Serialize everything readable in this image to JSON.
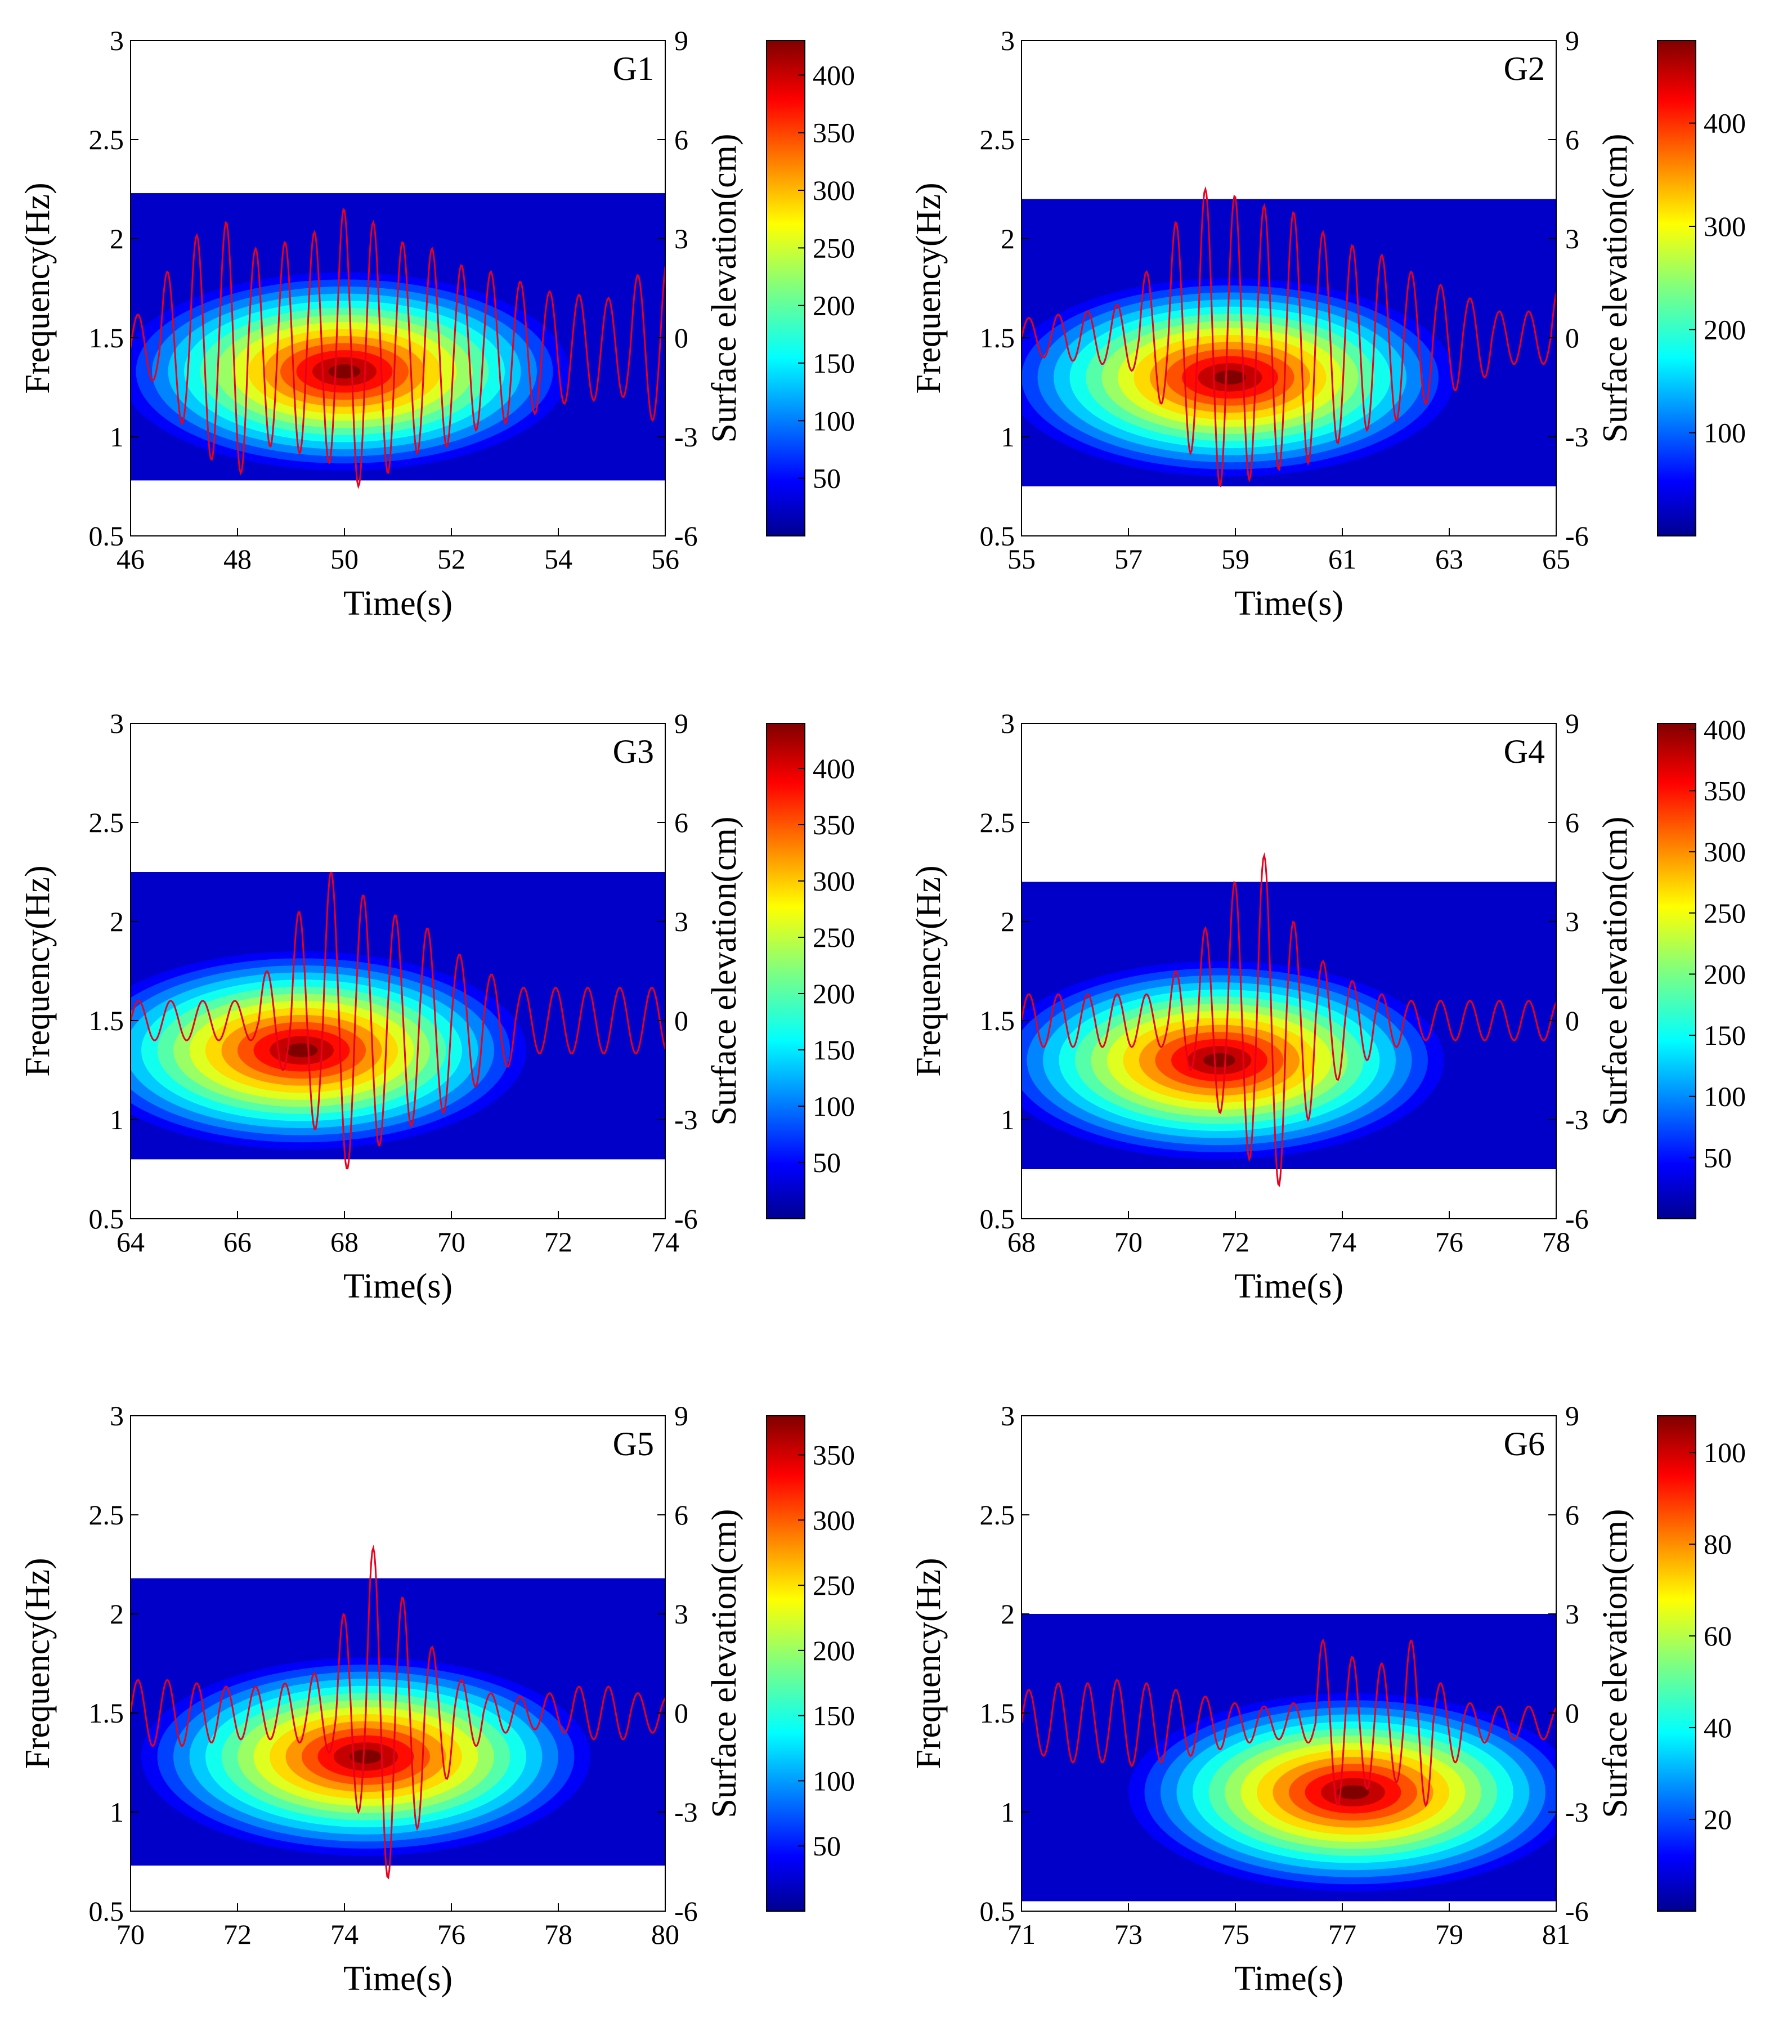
{
  "colorbar_label": "Surface elevation(cm)",
  "chart_data": [
    {
      "type": "heatmap",
      "title": "G1",
      "xlabel": "Time(s)",
      "ylabel": "Frequency(Hz)",
      "y2label": "Surface elevation(cm)",
      "xlim": [
        46,
        56
      ],
      "ylim": [
        0.5,
        3
      ],
      "y2lim": [
        -6,
        9
      ],
      "xticks": [
        "46",
        "48",
        "50",
        "52",
        "54",
        "56"
      ],
      "yticks": [
        "0.5",
        "1",
        "1.5",
        "2",
        "2.5",
        "3"
      ],
      "y2ticks": [
        "-6",
        "-3",
        "0",
        "3",
        "6",
        "9"
      ],
      "colorbar": {
        "min": 0,
        "max": 430,
        "ticks": [
          "50",
          "100",
          "150",
          "200",
          "250",
          "300",
          "350",
          "400"
        ]
      },
      "energy_peak": {
        "t": 50.0,
        "f": 1.33,
        "value": 430
      },
      "surface_elevation": {
        "t_start": 46.0,
        "period": 0.55,
        "amplitudes": [
          1.0,
          2.3,
          3.4,
          3.8,
          3.0,
          3.2,
          3.5,
          4.2,
          3.8,
          3.2,
          3.0,
          2.5,
          2.3,
          2.0,
          1.7,
          1.6,
          1.5,
          2.2,
          2.7
        ],
        "offset": -0.3
      }
    },
    {
      "type": "heatmap",
      "title": "G2",
      "xlabel": "Time(s)",
      "ylabel": "Frequency(Hz)",
      "y2label": "Surface elevation(cm)",
      "xlim": [
        55,
        65
      ],
      "ylim": [
        0.5,
        3
      ],
      "y2lim": [
        -6,
        9
      ],
      "xticks": [
        "55",
        "57",
        "59",
        "61",
        "63",
        "65"
      ],
      "yticks": [
        "0.5",
        "1",
        "1.5",
        "2",
        "2.5",
        "3"
      ],
      "y2ticks": [
        "-6",
        "-3",
        "0",
        "3",
        "6",
        "9"
      ],
      "colorbar": {
        "min": 0,
        "max": 480,
        "ticks": [
          "100",
          "200",
          "300",
          "400"
        ]
      },
      "energy_peak": {
        "t": 58.9,
        "f": 1.3,
        "value": 480
      },
      "surface_elevation": {
        "t_start": 55.0,
        "period": 0.55,
        "amplitudes": [
          0.6,
          0.7,
          0.8,
          1.0,
          2.0,
          3.5,
          4.5,
          4.3,
          4.0,
          3.8,
          3.2,
          2.8,
          2.5,
          2.0,
          1.6,
          1.2,
          0.8,
          0.8,
          1.5
        ],
        "offset": 0.0
      }
    },
    {
      "type": "heatmap",
      "title": "G3",
      "xlabel": "Time(s)",
      "ylabel": "Frequency(Hz)",
      "y2label": "Surface elevation(cm)",
      "xlim": [
        64,
        74
      ],
      "ylim": [
        0.5,
        3
      ],
      "y2lim": [
        -6,
        9
      ],
      "xticks": [
        "64",
        "66",
        "68",
        "70",
        "72",
        "74"
      ],
      "yticks": [
        "0.5",
        "1",
        "1.5",
        "2",
        "2.5",
        "3"
      ],
      "y2ticks": [
        "-6",
        "-3",
        "0",
        "3",
        "6",
        "9"
      ],
      "colorbar": {
        "min": 0,
        "max": 440,
        "ticks": [
          "50",
          "100",
          "150",
          "200",
          "250",
          "300",
          "350",
          "400"
        ]
      },
      "energy_peak": {
        "t": 67.2,
        "f": 1.35,
        "value": 440
      },
      "surface_elevation": {
        "t_start": 64.0,
        "period": 0.6,
        "amplitudes": [
          0.6,
          0.6,
          0.6,
          0.6,
          1.5,
          3.3,
          4.5,
          3.8,
          3.2,
          2.8,
          2.0,
          1.4,
          1.0,
          1.0,
          1.0,
          1.0,
          1.0
        ],
        "offset": 0.0
      }
    },
    {
      "type": "heatmap",
      "title": "G4",
      "xlabel": "Time(s)",
      "ylabel": "Frequency(Hz)",
      "y2label": "Surface elevation(cm)",
      "xlim": [
        68,
        78
      ],
      "ylim": [
        0.5,
        3
      ],
      "y2lim": [
        -6,
        9
      ],
      "xticks": [
        "68",
        "70",
        "72",
        "74",
        "76",
        "78"
      ],
      "yticks": [
        "0.5",
        "1",
        "1.5",
        "2",
        "2.5",
        "3"
      ],
      "y2ticks": [
        "-6",
        "-3",
        "0",
        "3",
        "6",
        "9"
      ],
      "colorbar": {
        "min": 0,
        "max": 405,
        "ticks": [
          "50",
          "100",
          "150",
          "200",
          "250",
          "300",
          "350",
          "400"
        ]
      },
      "energy_peak": {
        "t": 71.7,
        "f": 1.3,
        "value": 405
      },
      "surface_elevation": {
        "t_start": 68.0,
        "period": 0.55,
        "amplitudes": [
          0.8,
          0.8,
          0.8,
          0.8,
          0.8,
          1.5,
          2.8,
          4.2,
          5.0,
          3.0,
          1.8,
          1.2,
          0.8,
          0.6,
          0.6,
          0.6,
          0.6,
          0.6,
          0.6
        ],
        "offset": 0.0
      }
    },
    {
      "type": "heatmap",
      "title": "G5",
      "xlabel": "Time(s)",
      "ylabel": "Frequency(Hz)",
      "y2label": "Surface elevation(cm)",
      "xlim": [
        70,
        80
      ],
      "ylim": [
        0.5,
        3
      ],
      "y2lim": [
        -6,
        9
      ],
      "xticks": [
        "70",
        "72",
        "74",
        "76",
        "78",
        "80"
      ],
      "yticks": [
        "0.5",
        "1",
        "1.5",
        "2",
        "2.5",
        "3"
      ],
      "y2ticks": [
        "-6",
        "-3",
        "0",
        "3",
        "6",
        "9"
      ],
      "colorbar": {
        "min": 0,
        "max": 380,
        "ticks": [
          "50",
          "100",
          "150",
          "200",
          "250",
          "300",
          "350"
        ]
      },
      "energy_peak": {
        "t": 74.4,
        "f": 1.28,
        "value": 380
      },
      "surface_elevation": {
        "t_start": 70.0,
        "period": 0.55,
        "amplitudes": [
          1.0,
          1.0,
          0.9,
          0.8,
          0.8,
          0.9,
          1.2,
          3.0,
          5.0,
          3.5,
          2.0,
          1.0,
          0.6,
          0.5,
          0.6,
          0.8,
          0.8,
          0.6,
          0.5
        ],
        "offset": 0.0
      }
    },
    {
      "type": "heatmap",
      "title": "G6",
      "xlabel": "Time(s)",
      "ylabel": "Frequency(Hz)",
      "y2label": "Surface elevation(cm)",
      "xlim": [
        71,
        81
      ],
      "ylim": [
        0.5,
        3
      ],
      "y2lim": [
        -6,
        9
      ],
      "xticks": [
        "71",
        "73",
        "75",
        "77",
        "79",
        "81"
      ],
      "yticks": [
        "0.5",
        "1",
        "1.5",
        "2",
        "2.5",
        "3"
      ],
      "y2ticks": [
        "-6",
        "-3",
        "0",
        "3",
        "6",
        "9"
      ],
      "colorbar": {
        "min": 0,
        "max": 108,
        "ticks": [
          "20",
          "40",
          "60",
          "80",
          "100"
        ]
      },
      "energy_peak": {
        "t": 77.2,
        "f": 1.1,
        "value": 108
      },
      "surface_elevation": {
        "t_start": 71.0,
        "period": 0.55,
        "amplitudes": [
          1.0,
          1.2,
          1.2,
          1.3,
          1.2,
          1.0,
          0.8,
          0.6,
          0.5,
          0.6,
          2.5,
          2.0,
          1.8,
          2.5,
          1.2,
          0.6,
          0.5,
          0.5,
          0.5
        ],
        "offset": -0.3
      }
    }
  ]
}
